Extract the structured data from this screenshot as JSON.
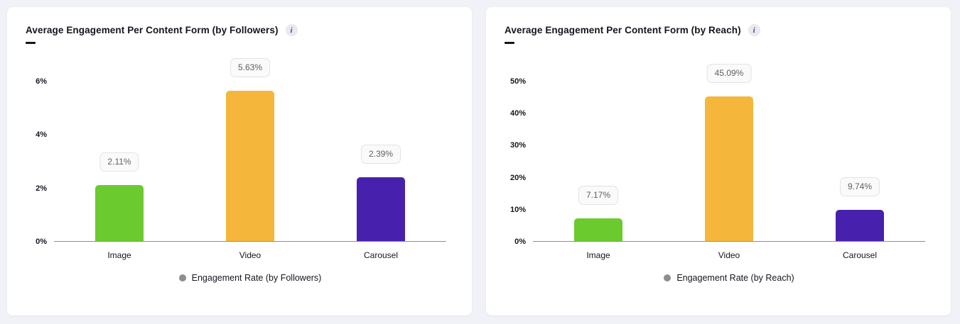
{
  "page": {
    "background_color": "#f1f2f7",
    "card_color": "#ffffff"
  },
  "chart_data": [
    {
      "type": "bar",
      "title": "Average Engagement Per Content Form (by Followers)",
      "info_icon_glyph": "i",
      "categories": [
        "Image",
        "Video",
        "Carousel"
      ],
      "values": [
        2.11,
        5.63,
        2.39
      ],
      "value_labels": [
        "2.11%",
        "5.63%",
        "2.39%"
      ],
      "bar_colors": [
        "#6bca2e",
        "#f4b73c",
        "#4721ae"
      ],
      "xlabel": "",
      "ylabel": "",
      "ylim": [
        0,
        6
      ],
      "ytick_values": [
        0,
        2,
        4,
        6
      ],
      "ytick_labels": [
        "0%",
        "2%",
        "4%",
        "6%"
      ],
      "grid": false,
      "legend": "Engagement Rate (by Followers)",
      "legend_position": "bottom",
      "legend_dot_color": "#8d8d8f"
    },
    {
      "type": "bar",
      "title": "Average Engagement Per Content Form (by Reach)",
      "info_icon_glyph": "i",
      "categories": [
        "Image",
        "Video",
        "Carousel"
      ],
      "values": [
        7.17,
        45.09,
        9.74
      ],
      "value_labels": [
        "7.17%",
        "45.09%",
        "9.74%"
      ],
      "bar_colors": [
        "#6bca2e",
        "#f4b73c",
        "#4721ae"
      ],
      "xlabel": "",
      "ylabel": "",
      "ylim": [
        0,
        50
      ],
      "ytick_values": [
        0,
        10,
        20,
        30,
        40,
        50
      ],
      "ytick_labels": [
        "0%",
        "10%",
        "20%",
        "30%",
        "40%",
        "50%"
      ],
      "grid": false,
      "legend": "Engagement Rate (by Reach)",
      "legend_position": "bottom",
      "legend_dot_color": "#8d8d8f"
    }
  ]
}
